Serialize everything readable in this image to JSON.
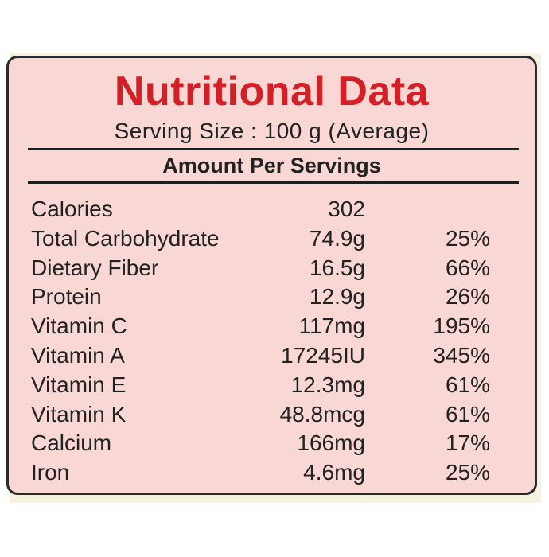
{
  "label": {
    "title": "Nutritional Data",
    "serving": "Serving Size : 100 g (Average)",
    "section": "Amount Per Servings",
    "rows": [
      {
        "name": "Calories",
        "amount": "302",
        "dv": ""
      },
      {
        "name": "Total Carbohydrate",
        "amount": "74.9g",
        "dv": "25%"
      },
      {
        "name": "Dietary Fiber",
        "amount": "16.5g",
        "dv": "66%"
      },
      {
        "name": "Protein",
        "amount": "12.9g",
        "dv": "26%"
      },
      {
        "name": "Vitamin C",
        "amount": "117mg",
        "dv": "195%"
      },
      {
        "name": "Vitamin A",
        "amount": "17245IU",
        "dv": "345%"
      },
      {
        "name": "Vitamin E",
        "amount": "12.3mg",
        "dv": "61%"
      },
      {
        "name": "Vitamin K",
        "amount": "48.8mcg",
        "dv": "61%"
      },
      {
        "name": "Calcium",
        "amount": "166mg",
        "dv": "17%"
      },
      {
        "name": "Iron",
        "amount": "4.6mg",
        "dv": "25%"
      }
    ]
  },
  "colors": {
    "panel_background": "#f9d7d4",
    "title": "#d41f26",
    "text": "#222222",
    "border": "#2b2b2b"
  }
}
